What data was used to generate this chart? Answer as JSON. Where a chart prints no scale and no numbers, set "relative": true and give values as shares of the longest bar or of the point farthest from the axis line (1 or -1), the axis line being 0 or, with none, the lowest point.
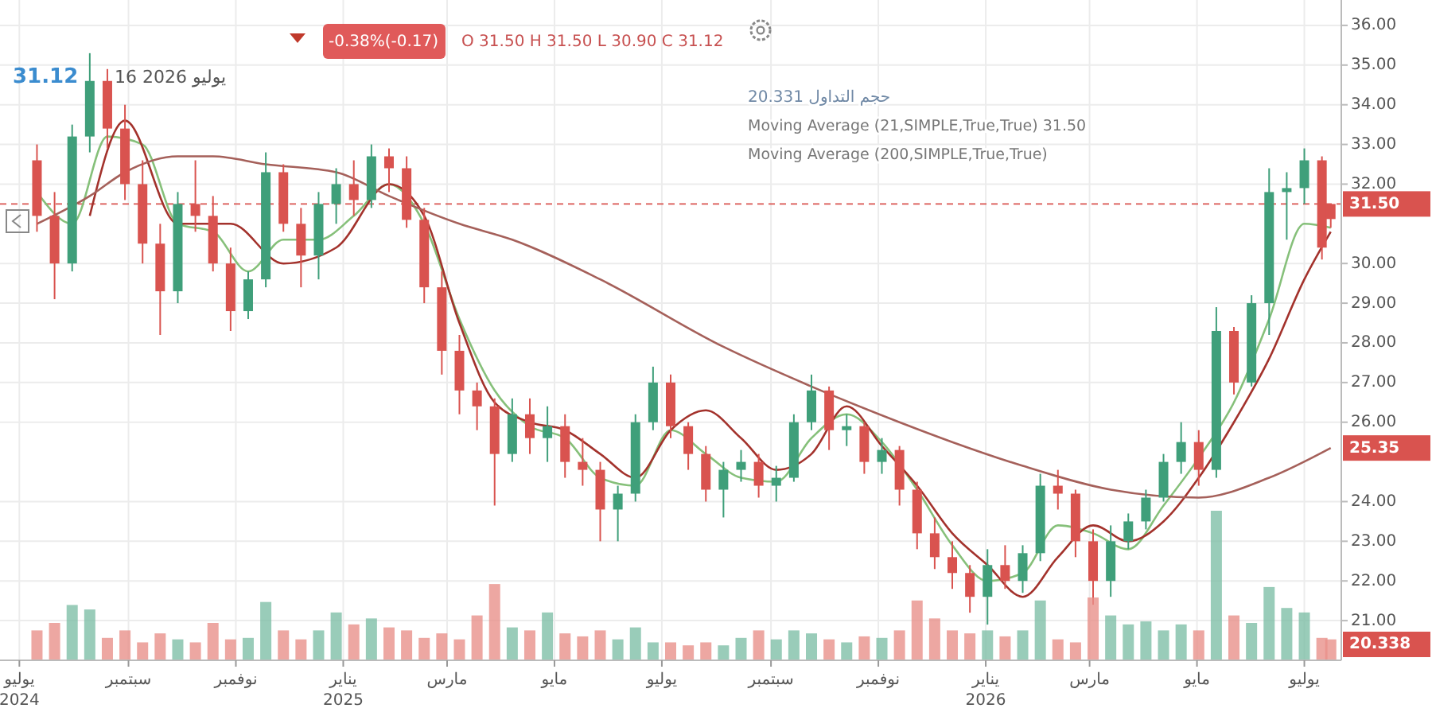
{
  "chart_data": [
    {
      "type": "candlestick",
      "tick_labels": "y",
      "grid": true,
      "x": [
        "2024-07-11",
        "2024-07-21",
        "2024-07-31",
        "2024-08-10",
        "2024-08-20",
        "2024-08-30",
        "2024-09-09",
        "2024-09-19",
        "2024-09-29",
        "2024-10-09",
        "2024-10-19",
        "2024-10-29",
        "2024-11-08",
        "2024-11-18",
        "2024-11-28",
        "2024-12-08",
        "2024-12-18",
        "2024-12-28",
        "2025-01-07",
        "2025-01-17",
        "2025-01-27",
        "2025-02-06",
        "2025-02-16",
        "2025-02-26",
        "2025-03-08",
        "2025-03-18",
        "2025-03-28",
        "2025-04-07",
        "2025-04-17",
        "2025-04-27",
        "2025-05-07",
        "2025-05-17",
        "2025-05-27",
        "2025-06-06",
        "2025-06-16",
        "2025-06-26",
        "2025-07-06",
        "2025-07-16",
        "2025-07-26",
        "2025-08-05",
        "2025-08-15",
        "2025-08-25",
        "2025-09-04",
        "2025-09-14",
        "2025-09-24",
        "2025-10-04",
        "2025-10-14",
        "2025-10-24",
        "2025-11-03",
        "2025-11-13",
        "2025-11-23",
        "2025-12-03",
        "2025-12-13",
        "2025-12-23",
        "2026-01-02",
        "2026-01-12",
        "2026-01-22",
        "2026-02-01",
        "2026-02-11",
        "2026-02-21",
        "2026-03-03",
        "2026-03-13",
        "2026-03-23",
        "2026-04-02",
        "2026-04-12",
        "2026-04-22",
        "2026-05-02",
        "2026-05-12",
        "2026-05-22",
        "2026-06-01",
        "2026-06-11",
        "2026-06-21",
        "2026-07-01",
        "2026-07-11",
        "2026-07-16"
      ],
      "ohlc": [
        [
          32.6,
          33.0,
          30.8,
          31.2
        ],
        [
          31.2,
          31.8,
          29.1,
          30.0
        ],
        [
          30.0,
          33.5,
          29.8,
          33.2
        ],
        [
          33.2,
          35.3,
          32.8,
          34.6
        ],
        [
          34.6,
          34.9,
          32.9,
          33.4
        ],
        [
          33.4,
          34.0,
          31.6,
          32.0
        ],
        [
          32.0,
          32.6,
          30.0,
          30.5
        ],
        [
          30.5,
          31.0,
          28.2,
          29.3
        ],
        [
          29.3,
          31.8,
          29.0,
          31.5
        ],
        [
          31.5,
          32.6,
          30.8,
          31.2
        ],
        [
          31.2,
          31.7,
          29.8,
          30.0
        ],
        [
          30.0,
          30.4,
          28.3,
          28.8
        ],
        [
          28.8,
          29.8,
          28.6,
          29.6
        ],
        [
          29.6,
          32.8,
          29.4,
          32.3
        ],
        [
          32.3,
          32.5,
          30.8,
          31.0
        ],
        [
          31.0,
          31.4,
          29.4,
          30.2
        ],
        [
          30.2,
          31.8,
          29.6,
          31.5
        ],
        [
          31.5,
          32.4,
          31.0,
          32.0
        ],
        [
          32.0,
          32.6,
          31.2,
          31.6
        ],
        [
          31.6,
          33.0,
          31.4,
          32.7
        ],
        [
          32.7,
          32.9,
          31.8,
          32.4
        ],
        [
          32.4,
          32.7,
          30.9,
          31.1
        ],
        [
          31.1,
          31.4,
          29.0,
          29.4
        ],
        [
          29.4,
          29.8,
          27.2,
          27.8
        ],
        [
          27.8,
          28.2,
          26.2,
          26.8
        ],
        [
          26.8,
          27.0,
          25.8,
          26.4
        ],
        [
          26.4,
          26.6,
          23.9,
          25.2
        ],
        [
          25.2,
          26.6,
          25.0,
          26.2
        ],
        [
          26.2,
          26.6,
          25.2,
          25.6
        ],
        [
          25.6,
          26.4,
          25.0,
          25.9
        ],
        [
          25.9,
          26.2,
          24.6,
          25.0
        ],
        [
          25.0,
          25.6,
          24.4,
          24.8
        ],
        [
          24.8,
          25.0,
          23.0,
          23.8
        ],
        [
          23.8,
          24.4,
          23.0,
          24.2
        ],
        [
          24.2,
          26.2,
          24.0,
          26.0
        ],
        [
          26.0,
          27.4,
          25.8,
          27.0
        ],
        [
          27.0,
          27.2,
          25.6,
          25.9
        ],
        [
          25.9,
          26.0,
          24.8,
          25.2
        ],
        [
          25.2,
          25.4,
          24.0,
          24.3
        ],
        [
          24.3,
          25.0,
          23.6,
          24.8
        ],
        [
          24.8,
          25.3,
          24.5,
          25.0
        ],
        [
          25.0,
          25.2,
          24.1,
          24.4
        ],
        [
          24.4,
          24.9,
          24.0,
          24.6
        ],
        [
          24.6,
          26.2,
          24.5,
          26.0
        ],
        [
          26.0,
          27.2,
          25.8,
          26.8
        ],
        [
          26.8,
          26.9,
          25.3,
          25.8
        ],
        [
          25.8,
          26.2,
          25.4,
          25.9
        ],
        [
          25.9,
          26.0,
          24.7,
          25.0
        ],
        [
          25.0,
          25.6,
          24.7,
          25.3
        ],
        [
          25.3,
          25.4,
          23.9,
          24.3
        ],
        [
          24.3,
          24.5,
          22.8,
          23.2
        ],
        [
          23.2,
          23.6,
          22.3,
          22.6
        ],
        [
          22.6,
          23.0,
          21.8,
          22.2
        ],
        [
          22.2,
          22.4,
          21.2,
          21.6
        ],
        [
          21.6,
          22.8,
          20.9,
          22.4
        ],
        [
          22.4,
          22.9,
          21.8,
          22.0
        ],
        [
          22.0,
          22.9,
          21.7,
          22.7
        ],
        [
          22.7,
          24.7,
          22.5,
          24.4
        ],
        [
          24.4,
          24.8,
          23.8,
          24.2
        ],
        [
          24.2,
          24.3,
          22.6,
          23.0
        ],
        [
          23.0,
          23.3,
          21.4,
          22.0
        ],
        [
          22.0,
          23.4,
          21.6,
          23.0
        ],
        [
          23.0,
          23.7,
          22.8,
          23.5
        ],
        [
          23.5,
          24.3,
          23.3,
          24.1
        ],
        [
          24.1,
          25.2,
          24.0,
          25.0
        ],
        [
          25.0,
          26.0,
          24.7,
          25.5
        ],
        [
          25.5,
          25.8,
          24.4,
          24.8
        ],
        [
          24.8,
          28.9,
          24.6,
          28.3
        ],
        [
          28.3,
          28.4,
          26.7,
          27.0
        ],
        [
          27.0,
          29.2,
          26.9,
          29.0
        ],
        [
          29.0,
          32.4,
          28.2,
          31.8
        ],
        [
          31.8,
          32.3,
          30.6,
          31.9
        ],
        [
          31.9,
          32.9,
          31.5,
          32.6
        ],
        [
          32.6,
          32.7,
          30.1,
          30.4
        ],
        [
          31.5,
          31.5,
          30.9,
          31.12
        ]
      ],
      "series": [
        {
          "type": "line",
          "color": "#86c07a",
          "x": [
            "2024-07-11",
            "2024-07-31",
            "2024-08-20",
            "2024-09-09",
            "2024-09-29",
            "2024-10-19",
            "2024-11-08",
            "2024-11-28",
            "2024-12-18",
            "2025-01-07",
            "2025-01-27",
            "2025-02-16",
            "2025-03-08",
            "2025-03-28",
            "2025-04-17",
            "2025-05-07",
            "2025-05-27",
            "2025-06-16",
            "2025-07-06",
            "2025-07-26",
            "2025-08-15",
            "2025-09-04",
            "2025-09-24",
            "2025-10-14",
            "2025-11-03",
            "2025-11-23",
            "2025-12-13",
            "2026-01-02",
            "2026-01-22",
            "2026-02-11",
            "2026-03-03",
            "2026-03-23",
            "2026-04-12",
            "2026-05-02",
            "2026-05-22",
            "2026-06-11",
            "2026-07-01",
            "2026-07-16"
          ],
          "values": [
            31.8,
            31.0,
            33.2,
            33.0,
            31.0,
            30.8,
            29.8,
            30.6,
            30.6,
            31.2,
            32.0,
            31.0,
            28.6,
            26.8,
            25.9,
            25.6,
            24.6,
            24.4,
            25.8,
            25.2,
            24.6,
            24.5,
            25.6,
            26.2,
            25.5,
            24.3,
            22.9,
            22.0,
            22.2,
            23.4,
            23.2,
            22.8,
            23.9,
            25.1,
            26.5,
            28.6,
            31.0,
            30.9
          ]
        },
        {
          "type": "line",
          "color": "#a3322c",
          "x": [
            "2024-08-10",
            "2024-08-30",
            "2024-09-29",
            "2024-10-29",
            "2024-11-28",
            "2024-12-28",
            "2025-01-27",
            "2025-02-16",
            "2025-03-08",
            "2025-03-28",
            "2025-04-17",
            "2025-05-07",
            "2025-05-27",
            "2025-06-16",
            "2025-07-06",
            "2025-07-26",
            "2025-08-15",
            "2025-09-04",
            "2025-09-24",
            "2025-10-14",
            "2025-11-03",
            "2025-11-23",
            "2025-12-13",
            "2026-01-02",
            "2026-01-22",
            "2026-02-11",
            "2026-03-03",
            "2026-03-23",
            "2026-04-12",
            "2026-05-02",
            "2026-05-22",
            "2026-06-11",
            "2026-07-01",
            "2026-07-16"
          ],
          "values": [
            31.2,
            33.6,
            31.0,
            31.0,
            30.0,
            30.4,
            32.0,
            31.2,
            28.5,
            26.5,
            26.0,
            25.8,
            25.2,
            24.6,
            25.8,
            26.3,
            25.6,
            24.8,
            25.2,
            26.4,
            25.4,
            24.4,
            23.2,
            22.4,
            21.6,
            22.6,
            23.4,
            23.0,
            23.5,
            24.6,
            26.0,
            27.6,
            29.6,
            30.8
          ]
        },
        {
          "type": "line",
          "color": "#a5605a",
          "x": [
            "2024-07-11",
            "2024-08-10",
            "2024-08-30",
            "2024-09-29",
            "2024-10-19",
            "2024-11-18",
            "2024-12-28",
            "2025-01-27",
            "2025-03-08",
            "2025-04-07",
            "2025-05-27",
            "2025-08-05",
            "2025-09-24",
            "2025-11-13",
            "2025-12-13",
            "2026-01-22",
            "2026-03-13",
            "2026-05-02",
            "2026-06-11",
            "2026-07-16"
          ],
          "values": [
            31.0,
            31.7,
            32.3,
            32.7,
            32.7,
            32.5,
            32.3,
            31.7,
            31.0,
            30.6,
            29.6,
            27.9,
            26.9,
            26.0,
            25.5,
            24.9,
            24.3,
            24.1,
            24.6,
            25.35
          ]
        }
      ],
      "xlim": [
        "2024-06-20",
        "2026-07-22"
      ],
      "xticks": [
        {
          "value": "2024-07-01",
          "label": null
        },
        {
          "value": "2024-09-01",
          "label": null
        },
        {
          "value": "2024-11-01",
          "label": null
        },
        {
          "value": "2025-01-01",
          "label": null
        },
        {
          "value": "2025-03-01",
          "label": null
        },
        {
          "value": "2025-05-01",
          "label": null
        },
        {
          "value": "2025-07-01",
          "label": null
        },
        {
          "value": "2025-09-01",
          "label": null
        },
        {
          "value": "2025-11-01",
          "label": null
        },
        {
          "value": "2026-01-01",
          "label": null
        },
        {
          "value": "2026-03-01",
          "label": null
        },
        {
          "value": "2026-05-01",
          "label": null
        },
        {
          "value": "2026-07-01",
          "label": null
        }
      ],
      "ylim": [
        20.0,
        36.64
      ],
      "yticks": [
        {
          "value": 21,
          "label": "21.00"
        },
        {
          "value": 22,
          "label": "22.00"
        },
        {
          "value": 23,
          "label": "23.00"
        },
        {
          "value": 24,
          "label": "24.00"
        },
        {
          "value": 26,
          "label": "26.00"
        },
        {
          "value": 27,
          "label": "27.00"
        },
        {
          "value": 28,
          "label": "28.00"
        },
        {
          "value": 29,
          "label": "29.00"
        },
        {
          "value": 30,
          "label": "30.00"
        },
        {
          "value": 32,
          "label": "32.00"
        },
        {
          "value": 33,
          "label": "33.00"
        },
        {
          "value": 34,
          "label": "34.00"
        },
        {
          "value": 35,
          "label": "35.00"
        },
        {
          "value": 36,
          "label": "36.00"
        }
      ],
      "ref_lines": [
        {
          "axis": "y",
          "value": 31.5,
          "label": "31.50",
          "color": "#d9534f",
          "line_style": "dashed"
        }
      ],
      "annotations": [
        "31.12",
        "16 2026 يوليو",
        "-0.38%(-0.17)",
        "O 31.50 H 31.50 L 30.90 C 31.12",
        "حجم التداول 20.331",
        "Moving Average (21,SIMPLE,True,True) 31.50",
        "Moving Average (200,SIMPLE,True,True)",
        {
          "text": "25.35",
          "x": "2026-07-16",
          "y": 25.35
        }
      ]
    },
    {
      "type": "bar",
      "relative": true,
      "tick_labels": "x",
      "x": [
        "2024-07-11",
        "2024-07-21",
        "2024-07-31",
        "2024-08-10",
        "2024-08-20",
        "2024-08-30",
        "2024-09-09",
        "2024-09-19",
        "2024-09-29",
        "2024-10-09",
        "2024-10-19",
        "2024-10-29",
        "2024-11-08",
        "2024-11-18",
        "2024-11-28",
        "2024-12-08",
        "2024-12-18",
        "2024-12-28",
        "2025-01-07",
        "2025-01-17",
        "2025-01-27",
        "2025-02-06",
        "2025-02-16",
        "2025-02-26",
        "2025-03-08",
        "2025-03-18",
        "2025-03-28",
        "2025-04-07",
        "2025-04-17",
        "2025-04-27",
        "2025-05-07",
        "2025-05-17",
        "2025-05-27",
        "2025-06-06",
        "2025-06-16",
        "2025-06-26",
        "2025-07-06",
        "2025-07-16",
        "2025-07-26",
        "2025-08-05",
        "2025-08-15",
        "2025-08-25",
        "2025-09-04",
        "2025-09-14",
        "2025-09-24",
        "2025-10-04",
        "2025-10-14",
        "2025-10-24",
        "2025-11-03",
        "2025-11-13",
        "2025-11-23",
        "2025-12-03",
        "2025-12-13",
        "2025-12-23",
        "2026-01-02",
        "2026-01-12",
        "2026-01-22",
        "2026-02-01",
        "2026-02-11",
        "2026-02-21",
        "2026-03-03",
        "2026-03-13",
        "2026-03-23",
        "2026-04-02",
        "2026-04-12",
        "2026-04-22",
        "2026-05-02",
        "2026-05-12",
        "2026-05-22",
        "2026-06-01",
        "2026-06-11",
        "2026-06-21",
        "2026-07-01",
        "2026-07-11",
        "2026-07-16"
      ],
      "values": [
        0.2,
        0.25,
        0.37,
        0.34,
        0.15,
        0.2,
        0.12,
        0.18,
        0.14,
        0.12,
        0.25,
        0.14,
        0.15,
        0.39,
        0.2,
        0.14,
        0.2,
        0.32,
        0.24,
        0.28,
        0.22,
        0.2,
        0.15,
        0.18,
        0.14,
        0.3,
        0.51,
        0.22,
        0.2,
        0.32,
        0.18,
        0.16,
        0.2,
        0.14,
        0.22,
        0.12,
        0.12,
        0.1,
        0.12,
        0.1,
        0.15,
        0.2,
        0.14,
        0.2,
        0.18,
        0.14,
        0.12,
        0.16,
        0.15,
        0.2,
        0.4,
        0.28,
        0.2,
        0.18,
        0.2,
        0.16,
        0.2,
        0.4,
        0.14,
        0.12,
        0.42,
        0.3,
        0.24,
        0.26,
        0.2,
        0.24,
        0.2,
        1,
        0.3,
        0.25,
        0.49,
        0.35,
        0.32,
        0.15,
        0.14
      ],
      "colors": [
        "#e8918b",
        "#e8918b",
        "#7fbfa8",
        "#7fbfa8",
        "#e8918b",
        "#e8918b",
        "#e8918b",
        "#e8918b",
        "#7fbfa8",
        "#e8918b",
        "#e8918b",
        "#e8918b",
        "#7fbfa8",
        "#7fbfa8",
        "#e8918b",
        "#e8918b",
        "#7fbfa8",
        "#7fbfa8",
        "#e8918b",
        "#7fbfa8",
        "#e8918b",
        "#e8918b",
        "#e8918b",
        "#e8918b",
        "#e8918b",
        "#e8918b",
        "#e8918b",
        "#7fbfa8",
        "#e8918b",
        "#7fbfa8",
        "#e8918b",
        "#e8918b",
        "#e8918b",
        "#7fbfa8",
        "#7fbfa8",
        "#7fbfa8",
        "#e8918b",
        "#e8918b",
        "#e8918b",
        "#7fbfa8",
        "#7fbfa8",
        "#e8918b",
        "#7fbfa8",
        "#7fbfa8",
        "#7fbfa8",
        "#e8918b",
        "#7fbfa8",
        "#e8918b",
        "#7fbfa8",
        "#e8918b",
        "#e8918b",
        "#e8918b",
        "#e8918b",
        "#e8918b",
        "#7fbfa8",
        "#e8918b",
        "#7fbfa8",
        "#7fbfa8",
        "#e8918b",
        "#e8918b",
        "#e8918b",
        "#7fbfa8",
        "#7fbfa8",
        "#7fbfa8",
        "#7fbfa8",
        "#7fbfa8",
        "#e8918b",
        "#7fbfa8",
        "#e8918b",
        "#7fbfa8",
        "#7fbfa8",
        "#7fbfa8",
        "#7fbfa8",
        "#e8918b",
        "#e8918b"
      ],
      "xlim": [
        "2024-06-20",
        "2026-07-22"
      ],
      "xticks": [
        {
          "value": "2024-07-01",
          "label": "يوليو\n2024"
        },
        {
          "value": "2024-09-01",
          "label": "سبتمبر"
        },
        {
          "value": "2024-11-01",
          "label": "نوفمبر"
        },
        {
          "value": "2025-01-01",
          "label": "يناير\n2025"
        },
        {
          "value": "2025-03-01",
          "label": "مارس"
        },
        {
          "value": "2025-05-01",
          "label": "مايو"
        },
        {
          "value": "2025-07-01",
          "label": "يوليو"
        },
        {
          "value": "2025-09-01",
          "label": "سبتمبر"
        },
        {
          "value": "2025-11-01",
          "label": "نوفمبر"
        },
        {
          "value": "2026-01-01",
          "label": "يناير\n2026"
        },
        {
          "value": "2026-03-01",
          "label": "مارس"
        },
        {
          "value": "2026-05-01",
          "label": "مايو"
        },
        {
          "value": "2026-07-01",
          "label": "يوليو"
        }
      ],
      "annotations": [
        "20.338"
      ]
    }
  ]
}
